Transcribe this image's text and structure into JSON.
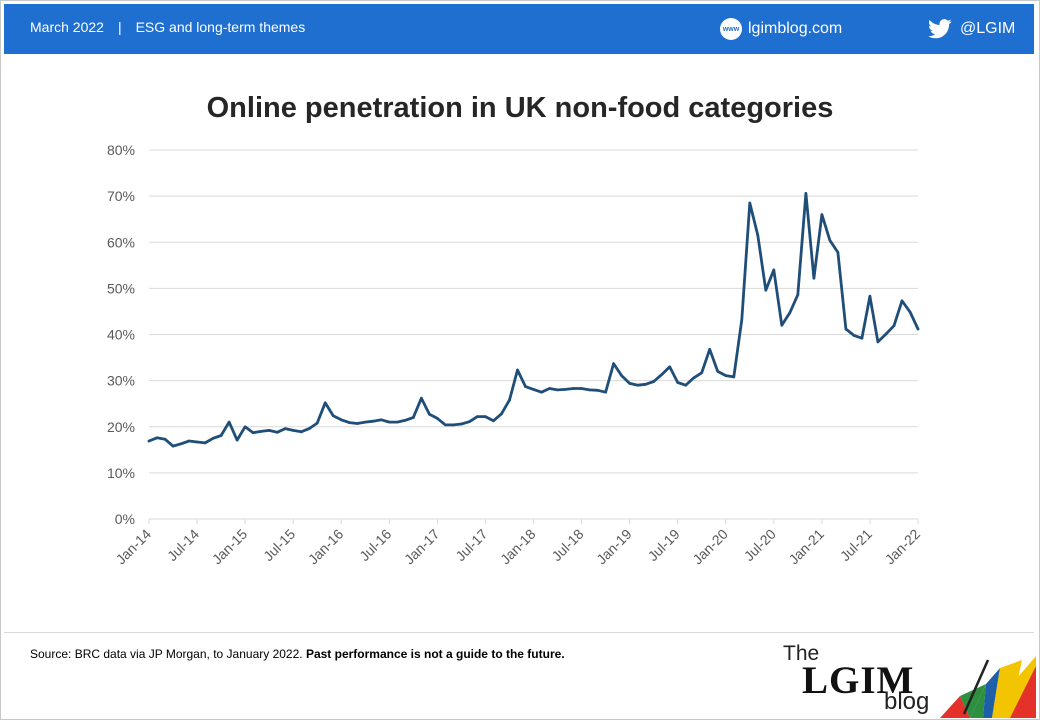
{
  "header": {
    "date": "March 2022",
    "separator": "|",
    "theme": "ESG and long-term themes",
    "www_badge": "www",
    "website": "lgimblog.com",
    "twitter": "@LGIM",
    "bg_color": "#1e6fd0"
  },
  "icons": [
    "www-icon",
    "twitter-bird-icon",
    "umbrella-logo-icon"
  ],
  "chart_data": {
    "type": "line",
    "title": "Online penetration in UK non-food categories",
    "xlabel": "",
    "ylabel": "",
    "ylim": [
      0,
      80
    ],
    "yticks": [
      0,
      10,
      20,
      30,
      40,
      50,
      60,
      70,
      80
    ],
    "ytick_labels": [
      "0%",
      "10%",
      "20%",
      "30%",
      "40%",
      "50%",
      "60%",
      "70%",
      "80%"
    ],
    "xtick_labels": [
      "Jan-14",
      "Jul-14",
      "Jan-15",
      "Jul-15",
      "Jan-16",
      "Jul-16",
      "Jan-17",
      "Jul-17",
      "Jan-18",
      "Jul-18",
      "Jan-19",
      "Jul-19",
      "Jan-20",
      "Jul-20",
      "Jan-21",
      "Jul-21",
      "Jan-22"
    ],
    "grid": "horizontal",
    "line_color": "#1f4e79",
    "x_start": "Jan-14",
    "x_end": "Jan-22",
    "series": [
      {
        "values": [
          16.9,
          17.6,
          17.3,
          15.8,
          16.3,
          16.9,
          16.7,
          16.5,
          17.5,
          18.1,
          21.0,
          17.1,
          20.0,
          18.7,
          19.0,
          19.2,
          18.8,
          19.6,
          19.2,
          18.9,
          19.6,
          20.8,
          25.2,
          22.4,
          21.5,
          20.9,
          20.7,
          21.0,
          21.2,
          21.5,
          21.0,
          21.0,
          21.4,
          22.0,
          26.2,
          22.7,
          21.8,
          20.4,
          20.4,
          20.6,
          21.1,
          22.2,
          22.2,
          21.3,
          22.8,
          25.8,
          32.3,
          28.7,
          28.1,
          27.5,
          28.3,
          28.0,
          28.1,
          28.3,
          28.3,
          28.0,
          27.9,
          27.5,
          33.7,
          31.1,
          29.4,
          29.0,
          29.2,
          29.8,
          31.3,
          33.0,
          29.6,
          29.0,
          30.6,
          31.7,
          36.8,
          32.0,
          31.1,
          30.8,
          43.2,
          68.5,
          61.5,
          49.6,
          54.0,
          42.0,
          44.7,
          48.6,
          70.6,
          52.2,
          66.0,
          60.4,
          57.8,
          41.2,
          39.8,
          39.2,
          48.3,
          38.4,
          40.1,
          41.9,
          47.3,
          44.9,
          41.2
        ]
      }
    ]
  },
  "footer": {
    "source_text": "Source: BRC data via JP Morgan, to January 2022. ",
    "disclaimer": "Past performance is not a guide to the future.",
    "logo_the": "The",
    "logo_lgim": "LGIM",
    "logo_blog": "blog"
  }
}
